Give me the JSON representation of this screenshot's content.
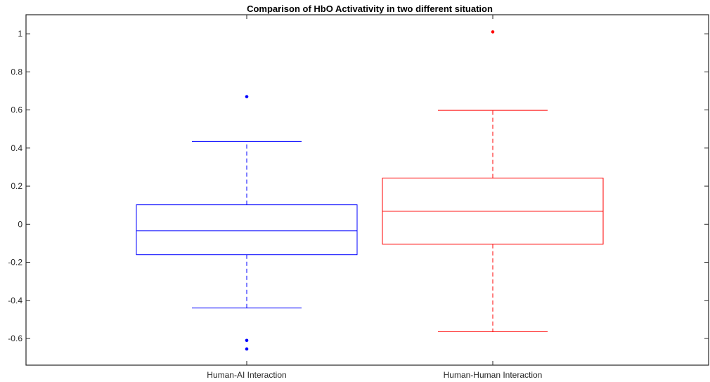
{
  "chart_data": {
    "type": "box",
    "title": "Comparison of HbO Activativity in two different situation",
    "xlabel": "",
    "ylabel": "",
    "ylim": [
      -0.74,
      1.1
    ],
    "yticks": [
      -0.6,
      -0.4,
      -0.2,
      0,
      0.2,
      0.4,
      0.6,
      0.8,
      1
    ],
    "ytick_labels": [
      "-0.6",
      "-0.4",
      "-0.2",
      "0",
      "0.2",
      "0.4",
      "0.6",
      "0.8",
      "1"
    ],
    "grid": false,
    "categories": [
      "Human-AI Interaction",
      "Human-Human Interaction"
    ],
    "boxes": [
      {
        "category": "Human-AI Interaction",
        "color": "#0000ff",
        "whisker_low": -0.44,
        "q1": -0.16,
        "median": -0.035,
        "q3": 0.102,
        "whisker_high": 0.435,
        "outliers": [
          0.67,
          -0.61,
          -0.655
        ]
      },
      {
        "category": "Human-Human Interaction",
        "color": "#ff0000",
        "whisker_low": -0.565,
        "q1": -0.105,
        "median": 0.068,
        "q3": 0.242,
        "whisker_high": 0.598,
        "outliers": [
          1.01
        ]
      }
    ]
  }
}
